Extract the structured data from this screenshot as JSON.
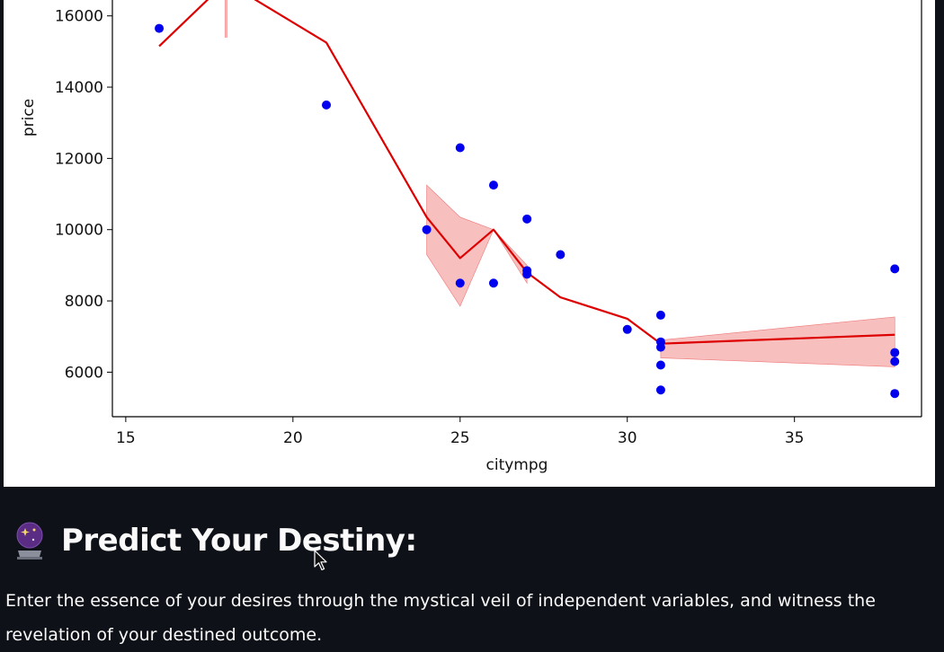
{
  "chart_data": {
    "type": "scatter",
    "xlabel": "citympg",
    "ylabel": "price",
    "xlim": [
      14.6,
      38.8
    ],
    "ylim": [
      4750,
      16950
    ],
    "x_ticks": [
      15,
      20,
      25,
      30,
      35
    ],
    "y_ticks": [
      6000,
      8000,
      10000,
      12000,
      14000,
      16000
    ],
    "grid": false,
    "colors": {
      "points": "#0000ee",
      "line": "#dd0000",
      "band": "#f6aaaa"
    },
    "series": [
      {
        "kind": "scatter",
        "points": [
          [
            16,
            15650
          ],
          [
            21,
            13500
          ],
          [
            24,
            10000
          ],
          [
            25,
            12300
          ],
          [
            25,
            8500
          ],
          [
            26,
            11250
          ],
          [
            26,
            8500
          ],
          [
            27,
            10300
          ],
          [
            27,
            8850
          ],
          [
            27,
            8750
          ],
          [
            28,
            9300
          ],
          [
            30,
            7200
          ],
          [
            31,
            7600
          ],
          [
            31,
            6850
          ],
          [
            31,
            6700
          ],
          [
            31,
            6200
          ],
          [
            31,
            5500
          ],
          [
            38,
            8900
          ],
          [
            38,
            6550
          ],
          [
            38,
            6300
          ],
          [
            38,
            5400
          ]
        ]
      },
      {
        "kind": "line",
        "points": [
          [
            16,
            15150
          ],
          [
            18,
            16950
          ],
          [
            21,
            15250
          ],
          [
            24,
            10350
          ],
          [
            25,
            9200
          ],
          [
            26,
            10000
          ],
          [
            27,
            8800
          ],
          [
            28,
            8100
          ],
          [
            30,
            7500
          ],
          [
            31,
            6800
          ],
          [
            38,
            7050
          ]
        ]
      },
      {
        "kind": "confidence_band",
        "segments": [
          {
            "x": [
              24,
              25,
              26
            ],
            "upper": [
              11250,
              10350,
              10000
            ],
            "lower": [
              9300,
              7850,
              10000
            ]
          },
          {
            "x": [
              26,
              27
            ],
            "upper": [
              10000,
              9000
            ],
            "lower": [
              10000,
              8500
            ]
          },
          {
            "x": [
              31,
              38
            ],
            "upper": [
              6900,
              7550
            ],
            "lower": [
              6400,
              6150
            ]
          },
          {
            "x": [
              18,
              18
            ],
            "upper": [
              16950,
              16950
            ],
            "lower": [
              15400,
              15400
            ]
          }
        ]
      }
    ]
  },
  "heading": {
    "icon": "crystal-ball-icon",
    "text": "Predict Your Destiny:"
  },
  "description": {
    "line1": "Enter the essence of your desires through the mystical veil of independent variables, and witness the",
    "line2": "revelation of your destined outcome."
  }
}
